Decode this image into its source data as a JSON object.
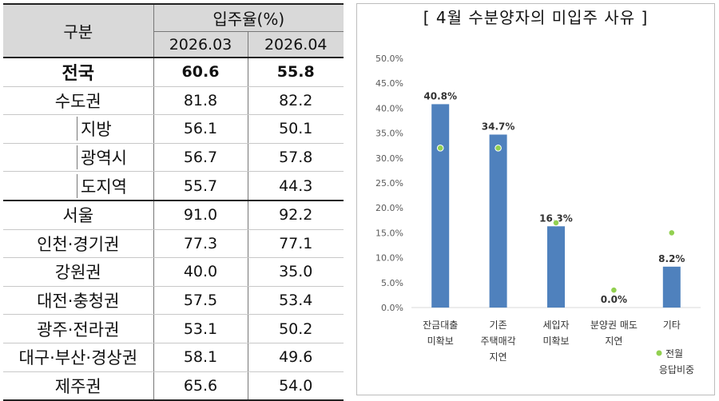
{
  "table": {
    "header": {
      "region": "구분",
      "rate": "입주율(%)",
      "months": [
        "2026.03",
        "2026.04"
      ]
    },
    "rows": [
      {
        "label": "전국",
        "values": [
          "60.6",
          "55.8"
        ]
      },
      {
        "label": "수도권",
        "values": [
          "81.8",
          "82.2"
        ]
      },
      {
        "label": "지방",
        "values": [
          "56.1",
          "50.1"
        ]
      },
      {
        "label": "광역시",
        "values": [
          "56.7",
          "57.8"
        ]
      },
      {
        "label": "도지역",
        "values": [
          "55.7",
          "44.3"
        ]
      },
      {
        "label": "서울",
        "values": [
          "91.0",
          "92.2"
        ]
      },
      {
        "label": "인천·경기권",
        "values": [
          "77.3",
          "77.1"
        ]
      },
      {
        "label": "강원권",
        "values": [
          "40.0",
          "35.0"
        ]
      },
      {
        "label": "대전·충청권",
        "values": [
          "57.5",
          "53.4"
        ]
      },
      {
        "label": "광주·전라권",
        "values": [
          "53.1",
          "50.2"
        ]
      },
      {
        "label": "대구·부산·경상권",
        "values": [
          "58.1",
          "49.6"
        ]
      },
      {
        "label": "제주권",
        "values": [
          "65.6",
          "54.0"
        ]
      }
    ]
  },
  "chart_data": {
    "type": "bar",
    "title": "[ 4월  수분양자의  미입주  사유 ]",
    "categories": [
      [
        "잔금대출",
        "미확보"
      ],
      [
        "기존",
        "주택매각",
        "지연"
      ],
      [
        "세입자",
        "미확보"
      ],
      [
        "분양권 매도",
        "지연"
      ],
      [
        "기타"
      ]
    ],
    "series": [
      {
        "values": [
          40.8,
          34.7,
          16.3,
          0.0,
          8.2
        ],
        "labels": [
          "40.8%",
          "34.7%",
          "16.3%",
          "0.0%",
          "8.2%"
        ],
        "color": "#4f81bd"
      },
      {
        "name": "전월 응답비중",
        "values": [
          32.0,
          32.0,
          17.0,
          3.5,
          15.0
        ],
        "color": "#92d050",
        "type": "scatter"
      }
    ],
    "ylim": [
      0,
      50
    ],
    "yticks": [
      "0.0%",
      "5.0%",
      "10.0%",
      "15.0%",
      "20.0%",
      "25.0%",
      "30.0%",
      "35.0%",
      "40.0%",
      "45.0%",
      "50.0%"
    ],
    "legend_lines": [
      "전월",
      "응답비중"
    ],
    "legend_position": "bottom-right"
  }
}
